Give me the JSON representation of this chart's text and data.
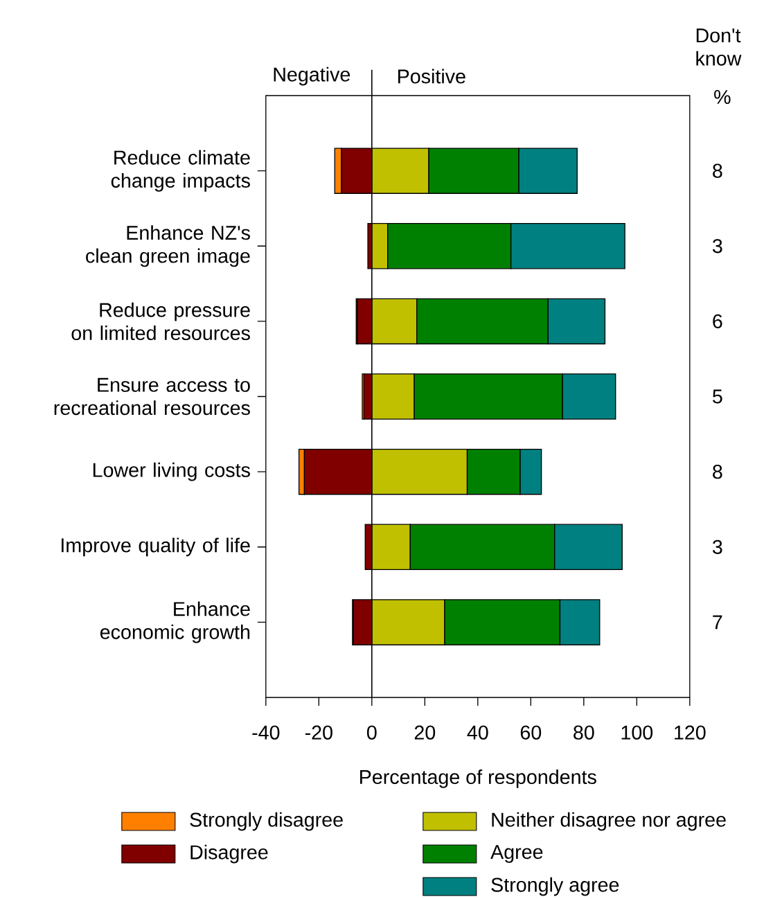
{
  "chart_data": {
    "type": "bar",
    "orientation": "horizontal",
    "stacked": true,
    "xlabel": "Percentage of respondents",
    "categories": [
      "Reduce climate change impacts",
      "Enhance NZ's clean green image",
      "Reduce pressure on limited resources",
      "Ensure access to recreational resources",
      "Lower living costs",
      "Improve quality of life",
      "Enhance economic growth"
    ],
    "series": [
      {
        "name": "Disagree",
        "color": "#800000",
        "values": [
          -11.5,
          -1.5,
          -5.5,
          -3,
          -25.5,
          -2.5,
          -7
        ]
      },
      {
        "name": "Strongly disagree",
        "color": "#ff8000",
        "values": [
          -2.5,
          0,
          -0.4,
          -0.6,
          -2,
          0,
          -0.3
        ]
      },
      {
        "name": "Neither disagree nor agree",
        "color": "#c0c000",
        "values": [
          21.5,
          6,
          17,
          16,
          36,
          14.5,
          27.5
        ]
      },
      {
        "name": "Agree",
        "color": "#008000",
        "values": [
          34,
          46.5,
          49.5,
          56,
          20,
          54.5,
          43.5
        ]
      },
      {
        "name": "Strongly agree",
        "color": "#008080",
        "values": [
          22,
          43,
          21.5,
          20,
          8,
          25.5,
          15
        ]
      }
    ],
    "xlim": [
      -40,
      120
    ],
    "xticks": [
      -40,
      -20,
      0,
      20,
      40,
      60,
      80,
      100,
      120
    ],
    "ref_lines": [
      {
        "axis": "x",
        "value": 0
      }
    ],
    "legend": "bottom",
    "annotations": [
      "Negative",
      "Positive",
      "Don't know",
      "%",
      "8",
      "3",
      "6",
      "5",
      "8",
      "3",
      "7"
    ]
  }
}
